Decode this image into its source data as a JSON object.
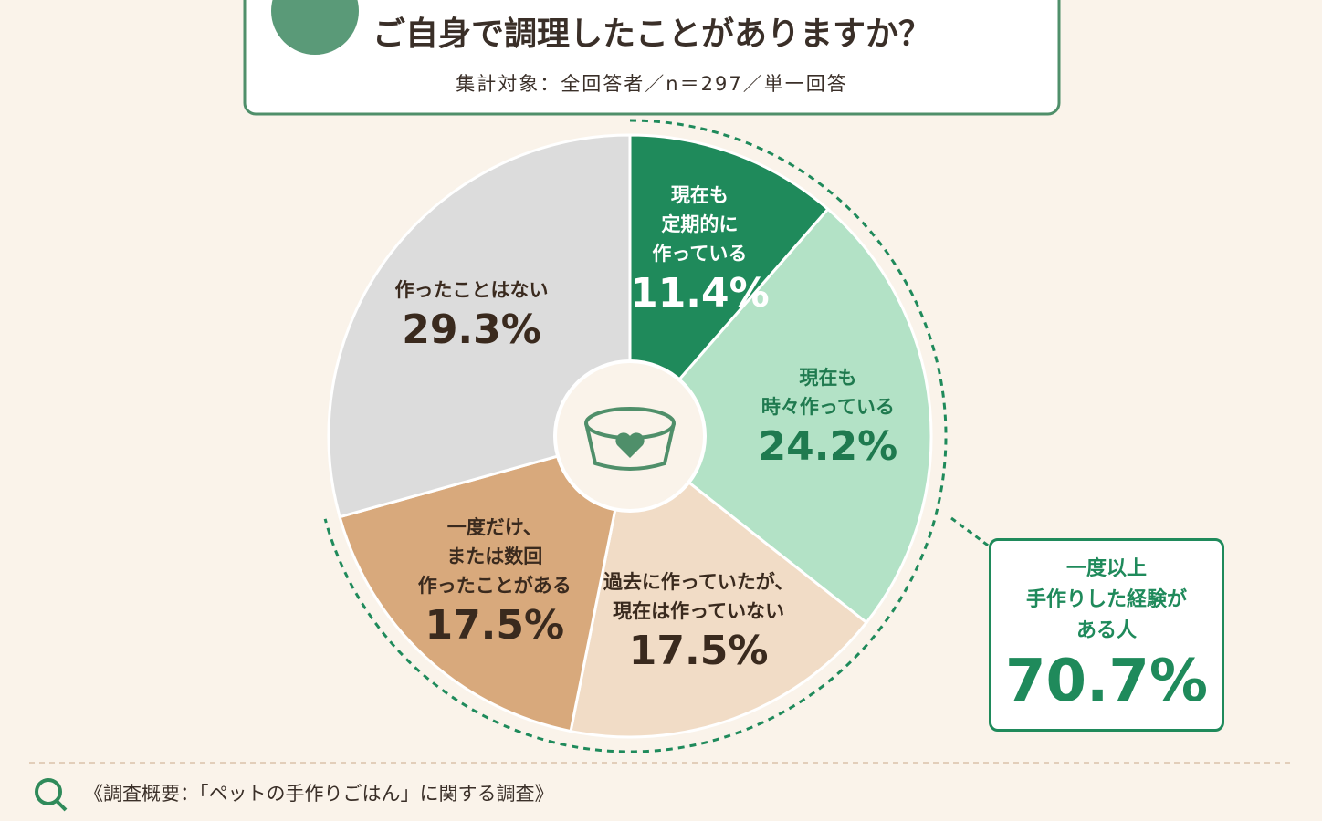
{
  "chart_data": {
    "type": "pie",
    "title": "ご自身で調理したことがありますか？",
    "subtitle": "集計対象：全回答者／n＝297／単一回答",
    "categories": [
      "現在も\n定期的に\n作っている",
      "現在も\n時々作っている",
      "過去に作っていたが、\n現在は作っていない",
      "一度だけ、\nまたは数回\n作ったことがある",
      "作ったことはない"
    ],
    "values": [
      11.4,
      24.2,
      17.5,
      17.5,
      29.3
    ],
    "value_labels": [
      "11.4%",
      "24.2%",
      "17.5%",
      "17.5%",
      "29.3%"
    ],
    "colors": [
      "#1f8a5b",
      "#b3e2c6",
      "#f1dcc6",
      "#d8a97c",
      "#dcdcdc"
    ],
    "annotation": {
      "text": "一度以上\n手作りした経験が\nある人",
      "value": 70.7,
      "label": "70.7%"
    },
    "footnote": "《調査概要：「ペットの手作りごはん」に関する調査》"
  }
}
